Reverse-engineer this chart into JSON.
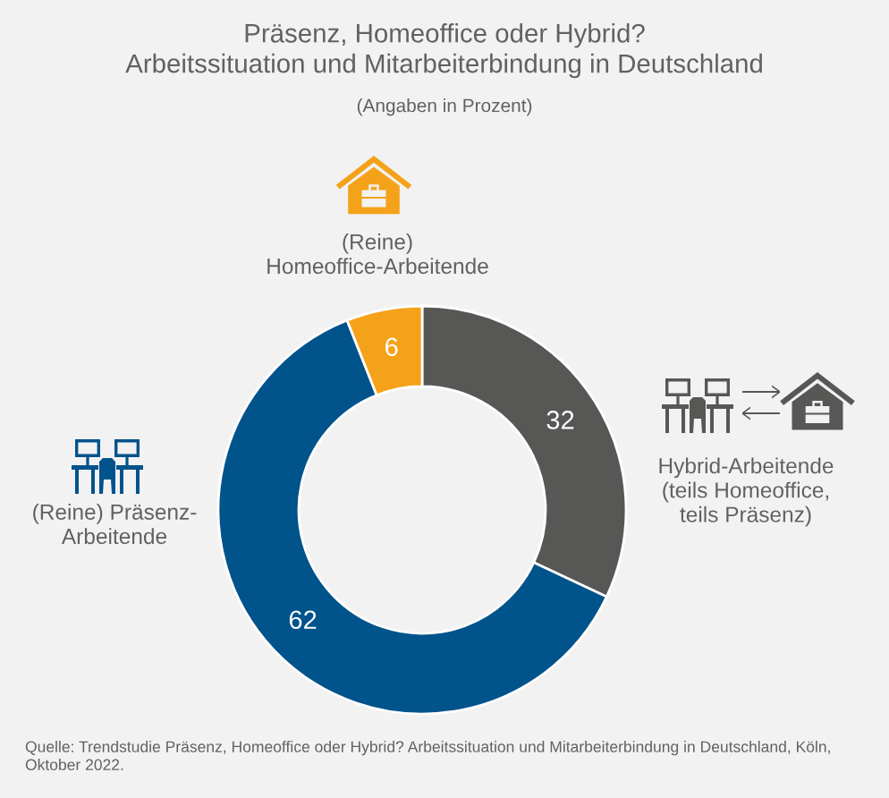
{
  "chart_data": {
    "type": "donut",
    "title": "Präsenz, Homeoffice oder Hybrid?\nArbeitssituation und Mitarbeiterbindung in Deutschland",
    "subtitle": "(Angaben in Prozent)",
    "categories": [
      "Hybrid-Arbeitende\n(teils Homeoffice,\nteils Präsenz)",
      "(Reine) Präsenz-\nArbeitende",
      "(Reine)\nHomeoffice-Arbeitende"
    ],
    "values": [
      32,
      62,
      6
    ],
    "colors": [
      "#575756",
      "#00538b",
      "#f5a21b"
    ],
    "data_labels": true,
    "annotations": [
      "Quelle: Trendstudie Präsenz, Homeoffice oder Hybrid? Arbeitssituation und Mitarbeiterbindung in Deutschland, Köln, Oktober 2022."
    ]
  }
}
